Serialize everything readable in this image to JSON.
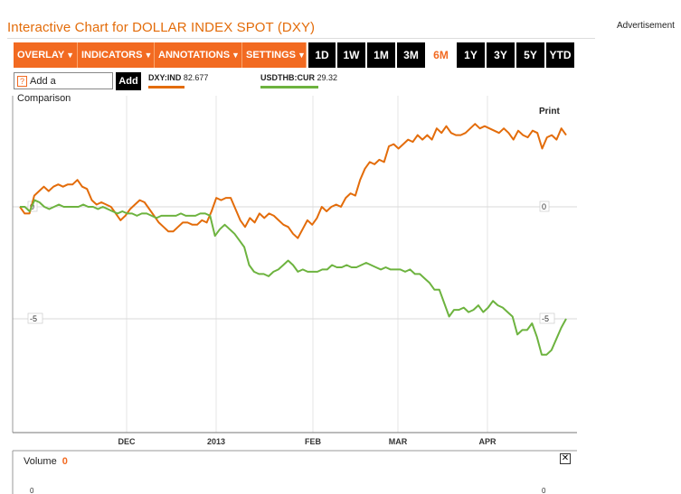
{
  "header": {
    "title": "Interactive Chart for DOLLAR INDEX SPOT (DXY)",
    "advertisement": "Advertisement"
  },
  "toolbar": {
    "menus": [
      {
        "label": "OVERLAY",
        "name": "overlay-menu"
      },
      {
        "label": "INDICATORS",
        "name": "indicators-menu"
      },
      {
        "label": "ANNOTATIONS",
        "name": "annotations-menu"
      },
      {
        "label": "SETTINGS",
        "name": "settings-menu"
      }
    ],
    "ranges": [
      "1D",
      "1W",
      "1M",
      "3M",
      "6M",
      "1Y",
      "3Y",
      "5Y",
      "YTD"
    ],
    "active_range": "6M"
  },
  "comparison": {
    "help_icon": "?",
    "input_label": "Add a Comparison",
    "add_label": "Add"
  },
  "print_label": "Print",
  "volume": {
    "label": "Volume",
    "value": "0"
  },
  "colors": {
    "accent": "#f26a21",
    "dxy": "#e36c0a",
    "usdthb": "#6db33f"
  },
  "chart_data": {
    "type": "line",
    "x_ticks": [
      "DEC",
      "2013",
      "FEB",
      "MAR",
      "APR"
    ],
    "y_ticks": [
      0,
      -5
    ],
    "ylim": [
      -10,
      4.5
    ],
    "grid": true,
    "series": [
      {
        "name": "DXY:IND",
        "legend_value": "82.677",
        "color": "#e36c0a",
        "values": [
          0,
          -0.3,
          -0.3,
          0.5,
          0.7,
          0.9,
          0.7,
          0.9,
          1,
          0.9,
          1,
          1,
          1.2,
          0.9,
          0.8,
          0.3,
          0.1,
          0.2,
          0.1,
          0,
          -0.3,
          -0.6,
          -0.4,
          -0.1,
          0.1,
          0.3,
          0.2,
          -0.1,
          -0.4,
          -0.7,
          -0.9,
          -1.1,
          -1.1,
          -0.9,
          -0.7,
          -0.7,
          -0.8,
          -0.8,
          -0.6,
          -0.7,
          -0.2,
          0.4,
          0.3,
          0.4,
          0.4,
          -0.1,
          -0.6,
          -0.9,
          -0.5,
          -0.7,
          -0.3,
          -0.5,
          -0.3,
          -0.4,
          -0.6,
          -0.8,
          -0.9,
          -1.2,
          -1.4,
          -1.0,
          -0.6,
          -0.8,
          -0.5,
          0,
          -0.2,
          0,
          0.1,
          0,
          0.4,
          0.6,
          0.5,
          1.2,
          1.7,
          2.0,
          1.9,
          2.1,
          2.0,
          2.7,
          2.8,
          2.6,
          2.8,
          3.0,
          2.9,
          3.2,
          3.0,
          3.2,
          3.0,
          3.5,
          3.3,
          3.6,
          3.3,
          3.2,
          3.2,
          3.3,
          3.5,
          3.7,
          3.5,
          3.6,
          3.5,
          3.4,
          3.3,
          3.5,
          3.3,
          3.0,
          3.4,
          3.2,
          3.1,
          3.4,
          3.3,
          2.6,
          3.1,
          3.2,
          3.0,
          3.5,
          3.2
        ]
      },
      {
        "name": "USDTHB:CUR",
        "legend_value": "29.32",
        "color": "#6db33f",
        "values": [
          0,
          0,
          -0.2,
          0.3,
          0.2,
          0,
          -0.1,
          0,
          0.1,
          0,
          0,
          0,
          0,
          0.1,
          0,
          0,
          -0.1,
          0,
          -0.1,
          -0.2,
          -0.3,
          -0.2,
          -0.3,
          -0.3,
          -0.4,
          -0.3,
          -0.3,
          -0.4,
          -0.5,
          -0.4,
          -0.4,
          -0.4,
          -0.4,
          -0.3,
          -0.4,
          -0.4,
          -0.4,
          -0.3,
          -0.3,
          -0.4,
          -1.3,
          -1.0,
          -0.8,
          -1.0,
          -1.2,
          -1.5,
          -1.8,
          -2.6,
          -2.9,
          -3.0,
          -3.0,
          -3.1,
          -2.9,
          -2.8,
          -2.6,
          -2.4,
          -2.6,
          -2.9,
          -2.8,
          -2.9,
          -2.9,
          -2.9,
          -2.8,
          -2.8,
          -2.6,
          -2.7,
          -2.7,
          -2.6,
          -2.7,
          -2.7,
          -2.6,
          -2.5,
          -2.6,
          -2.7,
          -2.8,
          -2.7,
          -2.8,
          -2.8,
          -2.8,
          -2.9,
          -2.8,
          -3.0,
          -3.0,
          -3.2,
          -3.4,
          -3.7,
          -3.7,
          -4.3,
          -4.9,
          -4.6,
          -4.6,
          -4.5,
          -4.7,
          -4.6,
          -4.4,
          -4.7,
          -4.5,
          -4.2,
          -4.4,
          -4.5,
          -4.7,
          -4.9,
          -5.7,
          -5.5,
          -5.5,
          -5.2,
          -5.8,
          -6.6,
          -6.6,
          -6.4,
          -5.9,
          -5.4,
          -5.0
        ]
      }
    ]
  }
}
